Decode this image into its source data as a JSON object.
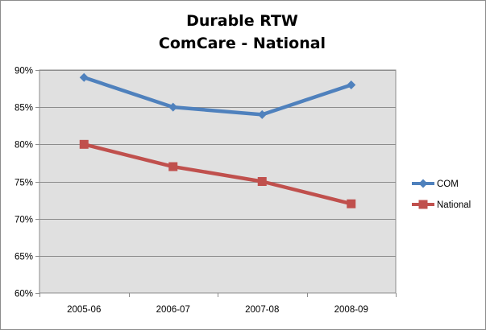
{
  "chart_data": {
    "type": "line",
    "title_lines": [
      "Durable RTW",
      "ComCare - National"
    ],
    "xlabel": "",
    "ylabel": "",
    "categories": [
      "2005-06",
      "2006-07",
      "2007-08",
      "2008-09"
    ],
    "series": [
      {
        "name": "COM",
        "values": [
          89,
          85,
          84,
          88
        ],
        "color": "#4f81bd",
        "marker": "diamond"
      },
      {
        "name": "National",
        "values": [
          80,
          77,
          75,
          72
        ],
        "color": "#c0504d",
        "marker": "square"
      }
    ],
    "ylim": [
      60,
      90
    ],
    "yticks": [
      60,
      65,
      70,
      75,
      80,
      85,
      90
    ],
    "ytick_labels": [
      "60%",
      "65%",
      "70%",
      "75%",
      "80%",
      "85%",
      "90%"
    ],
    "grid": true,
    "plot_background": "#e0e0e0",
    "legend": "right"
  }
}
